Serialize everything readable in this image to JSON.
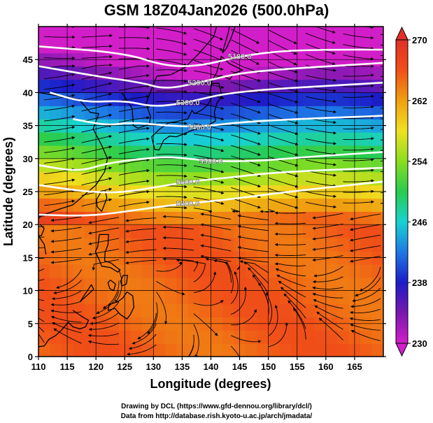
{
  "title": "GSM 18Z04Jan2026 (500.0hPa)",
  "credits": {
    "line1": "Drawing by DCL (https://www.gfd-dennou.org/library/dcl/)",
    "line2": "Data from http://database.rish.kyoto-u.ac.jp/arch/jmadata/"
  },
  "chart_data": {
    "type": "heatmap",
    "title": "GSM 18Z04Jan2026 (500.0hPa)",
    "xlabel": "Longitude (degrees)",
    "ylabel": "Latitude  (degrees)",
    "xlim": [
      110,
      170
    ],
    "ylim": [
      0,
      50
    ],
    "x_ticks": [
      "110",
      "115",
      "120",
      "125",
      "130",
      "135",
      "140",
      "145",
      "150",
      "155",
      "160",
      "165"
    ],
    "y_ticks": [
      "0",
      "5",
      "10",
      "15",
      "20",
      "25",
      "30",
      "35",
      "40",
      "45"
    ],
    "grid": true,
    "overlays": [
      "wind streamlines (arrows)",
      "geopotential height contours (white)",
      "coastlines"
    ],
    "colorbar": {
      "placement": "right",
      "range": [
        230,
        270
      ],
      "ticks": [
        "230",
        "238",
        "246",
        "254",
        "262",
        "270"
      ],
      "colors": [
        "#d21ec8",
        "#7a18b0",
        "#1c1cc8",
        "#1e78e6",
        "#18d2d2",
        "#28cc50",
        "#8ade1e",
        "#f0e020",
        "#f0a010",
        "#f05018",
        "#e03028"
      ]
    },
    "contours": [
      {
        "label": "5100.0",
        "points": [
          [
            110,
            47
          ],
          [
            125,
            46
          ],
          [
            132,
            44
          ],
          [
            138,
            44
          ],
          [
            145,
            45.5
          ],
          [
            152,
            46.3
          ],
          [
            160,
            46.5
          ],
          [
            170,
            46.5
          ]
        ]
      },
      {
        "label": "5200.0",
        "points": [
          [
            110,
            44
          ],
          [
            120,
            42.5
          ],
          [
            128,
            41.5
          ],
          [
            132,
            40.5
          ],
          [
            138,
            41.5
          ],
          [
            145,
            43
          ],
          [
            155,
            43.7
          ],
          [
            170,
            44.5
          ]
        ]
      },
      {
        "label": "5300.0",
        "points": [
          [
            112,
            40
          ],
          [
            118,
            38.5
          ],
          [
            125,
            38.8
          ],
          [
            130,
            37.8
          ],
          [
            136,
            38.5
          ],
          [
            142,
            39.8
          ],
          [
            150,
            40.5
          ],
          [
            160,
            41
          ],
          [
            170,
            41.5
          ]
        ]
      },
      {
        "label": "5400.0",
        "points": [
          [
            116,
            36
          ],
          [
            122,
            35
          ],
          [
            126,
            35.5
          ],
          [
            132,
            35
          ],
          [
            138,
            34.8
          ],
          [
            145,
            35.5
          ],
          [
            155,
            36
          ],
          [
            165,
            36.3
          ],
          [
            170,
            36.5
          ]
        ]
      },
      {
        "label": "5500.0",
        "points": [
          [
            110,
            29
          ],
          [
            117,
            28
          ],
          [
            122,
            29.3
          ],
          [
            128,
            30
          ],
          [
            133,
            30.3
          ],
          [
            140,
            29.6
          ],
          [
            148,
            29.6
          ],
          [
            156,
            30.2
          ],
          [
            163,
            30.6
          ],
          [
            170,
            31
          ]
        ]
      },
      {
        "label": "5600.0",
        "points": [
          [
            110,
            26
          ],
          [
            118,
            25
          ],
          [
            124,
            24.8
          ],
          [
            130,
            25.6
          ],
          [
            136,
            26.5
          ],
          [
            144,
            27.2
          ],
          [
            150,
            27.8
          ],
          [
            158,
            28.2
          ],
          [
            170,
            28.6
          ]
        ]
      },
      {
        "label": "5800.0",
        "points": [
          [
            110,
            21.5
          ],
          [
            118,
            21.3
          ],
          [
            124,
            21.8
          ],
          [
            130,
            22.6
          ],
          [
            136,
            23.2
          ],
          [
            144,
            23.9
          ],
          [
            150,
            24.6
          ],
          [
            160,
            25.6
          ],
          [
            170,
            26.5
          ]
        ]
      }
    ]
  }
}
